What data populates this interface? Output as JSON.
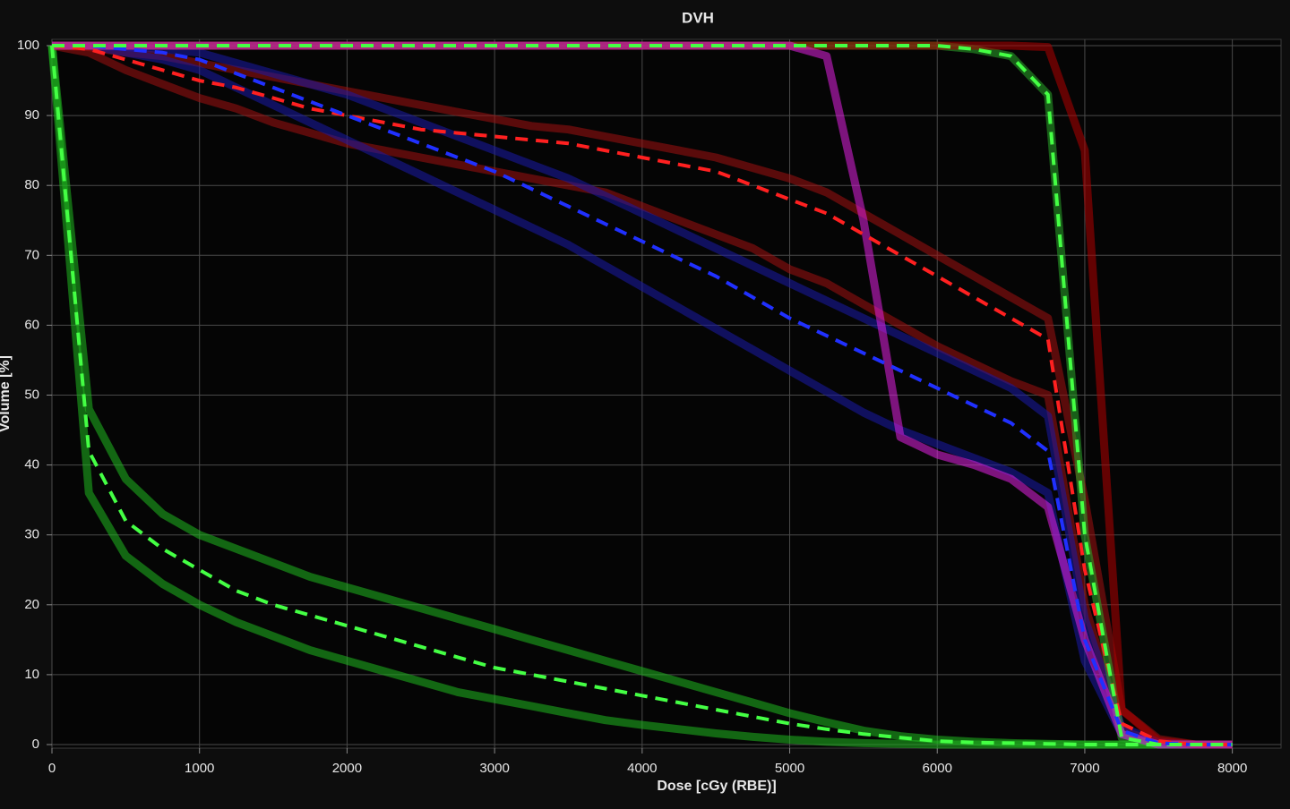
{
  "chart_data": {
    "type": "line",
    "title": "DVH",
    "x_label": "Dose [cGy (RBE)]",
    "y_label": "Volume [%]",
    "xlim": [
      0,
      8330
    ],
    "ylim": [
      0,
      100
    ],
    "xticks": [
      0,
      1000,
      2000,
      3000,
      4000,
      5000,
      6000,
      7000,
      8000
    ],
    "yticks": [
      0,
      10,
      20,
      30,
      40,
      50,
      60,
      70,
      80,
      90,
      100
    ],
    "grid": true,
    "x": [
      0,
      250,
      500,
      750,
      1000,
      1250,
      1500,
      1750,
      2000,
      2250,
      2500,
      2750,
      3000,
      3250,
      3500,
      3750,
      4000,
      4250,
      4500,
      4750,
      5000,
      5250,
      5500,
      5750,
      6000,
      6250,
      6500,
      6750,
      7000,
      7250,
      7500,
      7750,
      8000
    ],
    "series": [
      {
        "color": "#1fb81f",
        "dash": false,
        "values": [
          100,
          48,
          38,
          33,
          30,
          28,
          26,
          24,
          22.5,
          21,
          19.5,
          18,
          16.5,
          15,
          13.5,
          12,
          10.5,
          9,
          7.5,
          6,
          4.5,
          3.2,
          2,
          1.2,
          0.7,
          0.4,
          0.2,
          0.1,
          0,
          0,
          0,
          0,
          0
        ]
      },
      {
        "color": "#1fb81f",
        "dash": false,
        "values": [
          100,
          36,
          27,
          23,
          20,
          17.5,
          15.5,
          13.5,
          12,
          10.5,
          9,
          7.5,
          6.5,
          5.5,
          4.5,
          3.5,
          2.8,
          2.2,
          1.6,
          1.1,
          0.7,
          0.4,
          0.2,
          0.1,
          0,
          0,
          0,
          0,
          0,
          0,
          0,
          0,
          0
        ]
      },
      {
        "color": "#a01010",
        "dash": false,
        "values": [
          100,
          99.8,
          99,
          98.5,
          97.5,
          96.5,
          95.5,
          94.5,
          93.5,
          92.5,
          91.5,
          90.5,
          89.5,
          88.5,
          88,
          87,
          86,
          85,
          84,
          82.5,
          81,
          79,
          76,
          73,
          70,
          67,
          64,
          61,
          35,
          5,
          0.8,
          0,
          0
        ]
      },
      {
        "color": "#a01010",
        "dash": false,
        "values": [
          100,
          99,
          96.5,
          94.5,
          92.5,
          91,
          89,
          87.5,
          86,
          85,
          84,
          83,
          82,
          81,
          80,
          79,
          77,
          75,
          73,
          71,
          68,
          66,
          63,
          60,
          57,
          54.5,
          52,
          50,
          20,
          2,
          0.3,
          0,
          0
        ]
      },
      {
        "color": "#1a1aa8",
        "dash": false,
        "values": [
          100,
          100,
          99.8,
          99.5,
          99,
          97.5,
          96,
          94.5,
          93,
          91,
          89,
          87,
          85,
          83,
          81,
          78.5,
          76,
          73.5,
          71,
          68.5,
          66,
          63.5,
          61,
          58.5,
          56,
          53.5,
          51,
          47,
          18,
          2.5,
          0.3,
          0,
          0
        ]
      },
      {
        "color": "#1a1aa8",
        "dash": false,
        "values": [
          100,
          100,
          99,
          98,
          96.5,
          94,
          91.5,
          89,
          86.5,
          84,
          81.5,
          79,
          76.5,
          74,
          71.5,
          68.5,
          65.5,
          62.5,
          59.5,
          56.5,
          53.5,
          50.5,
          47.5,
          45,
          43,
          41,
          39,
          36,
          12,
          1.5,
          0.1,
          0,
          0
        ]
      },
      {
        "color": "#2aa82a",
        "dash": false,
        "values": [
          100,
          100,
          100,
          100,
          100,
          100,
          100,
          100,
          100,
          100,
          100,
          100,
          100,
          100,
          100,
          100,
          100,
          100,
          100,
          100,
          100,
          100,
          100,
          100,
          100,
          99.5,
          98.5,
          93,
          30,
          1,
          0,
          0,
          0
        ]
      },
      {
        "color": "#b00000",
        "dash": false,
        "values": [
          100,
          100,
          100,
          100,
          100,
          100,
          100,
          100,
          100,
          100,
          100,
          100,
          100,
          100,
          100,
          100,
          100,
          100,
          100,
          100,
          100,
          100,
          100,
          100,
          100,
          100,
          100,
          99.8,
          85,
          5,
          0.5,
          0,
          0
        ]
      },
      {
        "color": "#e020e0",
        "dash": false,
        "values": [
          100,
          100,
          100,
          100,
          100,
          100,
          100,
          100,
          100,
          100,
          100,
          100,
          100,
          100,
          100,
          100,
          100,
          100,
          100,
          100,
          100,
          98.5,
          75,
          44,
          41.5,
          40,
          38,
          34,
          15,
          1.5,
          0,
          0,
          0
        ]
      },
      {
        "color": "#44ff44",
        "dash": true,
        "values": [
          100,
          42,
          32,
          28,
          25,
          22,
          20,
          18.5,
          17,
          15.5,
          14,
          12.5,
          11,
          10,
          9,
          8,
          7,
          6,
          5,
          4,
          3,
          2.2,
          1.5,
          1,
          0.5,
          0.3,
          0.2,
          0.1,
          0,
          0,
          0,
          0,
          0
        ]
      },
      {
        "color": "#ff2020",
        "dash": true,
        "values": [
          100,
          99.5,
          98,
          96.5,
          95,
          94,
          92.5,
          91,
          90,
          89,
          88,
          87.5,
          87,
          86.5,
          86,
          85,
          84,
          83,
          82,
          80,
          78,
          76,
          73,
          70,
          67,
          64,
          61,
          58,
          25,
          3,
          0.5,
          0,
          0
        ]
      },
      {
        "color": "#2030ff",
        "dash": true,
        "values": [
          100,
          100,
          99.5,
          99,
          98,
          96,
          94,
          92,
          90,
          88,
          86,
          84,
          82,
          79.5,
          77,
          74.5,
          72,
          69.5,
          67,
          64,
          61,
          58.5,
          56,
          53.5,
          51,
          48.5,
          46,
          42,
          15,
          2,
          0.2,
          0,
          0
        ]
      },
      {
        "color": "#44ff44",
        "dash": true,
        "values": [
          100,
          100,
          100,
          100,
          100,
          100,
          100,
          100,
          100,
          100,
          100,
          100,
          100,
          100,
          100,
          100,
          100,
          100,
          100,
          100,
          100,
          100,
          100,
          100,
          100,
          99.5,
          98.5,
          93,
          30,
          1,
          0,
          0,
          0
        ]
      }
    ]
  }
}
